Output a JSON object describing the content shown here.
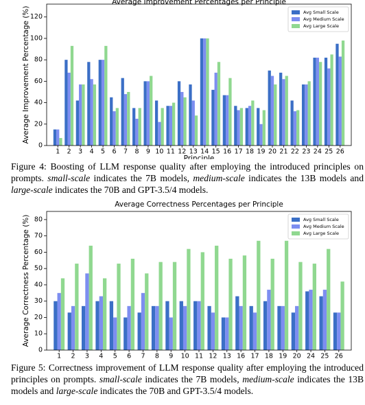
{
  "chart_data": [
    {
      "type": "bar",
      "title": "Average Improvement Percentages per Principle",
      "xlabel": "Principle",
      "ylabel": "Average Improvement Percentage (%)",
      "categories": [
        "1",
        "2",
        "3",
        "4",
        "5",
        "6",
        "7",
        "8",
        "9",
        "10",
        "11",
        "12",
        "13",
        "14",
        "15",
        "16",
        "17",
        "18",
        "19",
        "20",
        "21",
        "22",
        "23",
        "24",
        "25",
        "26"
      ],
      "series": [
        {
          "name": "Avg Small Scale",
          "color": "#3b6fc6",
          "values": [
            15,
            80,
            42,
            78,
            80,
            45,
            63,
            35,
            60,
            42,
            37,
            60,
            57,
            100,
            52,
            47,
            37,
            35,
            35,
            70,
            68,
            42,
            57,
            82,
            82,
            95
          ]
        },
        {
          "name": "Avg Medium Scale",
          "color": "#7d8ef0",
          "values": [
            15,
            68,
            57,
            62,
            80,
            32,
            48,
            25,
            60,
            22,
            37,
            50,
            42,
            100,
            68,
            47,
            33,
            37,
            20,
            65,
            62,
            32,
            57,
            82,
            72,
            83
          ]
        },
        {
          "name": "Avg Large Scale",
          "color": "#90d890",
          "values": [
            7,
            93,
            57,
            57,
            93,
            35,
            50,
            35,
            65,
            35,
            40,
            45,
            28,
            100,
            78,
            63,
            35,
            42,
            33,
            57,
            65,
            33,
            60,
            78,
            85,
            98
          ]
        }
      ],
      "ylim": [
        0,
        132
      ],
      "yticks": [
        0,
        20,
        40,
        60,
        80,
        100,
        120
      ],
      "legend": "upper right"
    },
    {
      "type": "bar",
      "title": "Average Correctness Percentages per Principle",
      "xlabel": "Principle",
      "ylabel": "Average Correctness Percentage (%)",
      "categories": [
        "1",
        "2",
        "3",
        "4",
        "5",
        "6",
        "7",
        "8",
        "9",
        "10",
        "11",
        "12",
        "13",
        "16",
        "17",
        "18",
        "19",
        "20",
        "24",
        "25",
        "26"
      ],
      "series": [
        {
          "name": "Avg Small Scale",
          "color": "#3b6fc6",
          "values": [
            30,
            23,
            27,
            30,
            30,
            20,
            23,
            27,
            30,
            30,
            30,
            27,
            20,
            33,
            27,
            30,
            27,
            23,
            36,
            33,
            23
          ]
        },
        {
          "name": "Avg Medium Scale",
          "color": "#7d8ef0",
          "values": [
            35,
            27,
            47,
            33,
            20,
            27,
            35,
            27,
            20,
            27,
            30,
            23,
            20,
            27,
            23,
            37,
            27,
            27,
            37,
            37,
            23
          ]
        },
        {
          "name": "Avg Large Scale",
          "color": "#90d890",
          "values": [
            44,
            53,
            64,
            44,
            53,
            56,
            47,
            54,
            54,
            62,
            60,
            64,
            56,
            58,
            67,
            56,
            67,
            54,
            53,
            62,
            42
          ]
        }
      ],
      "ylim": [
        0,
        85
      ],
      "yticks": [
        0,
        10,
        20,
        30,
        40,
        50,
        60,
        70,
        80
      ],
      "legend": "upper right"
    }
  ],
  "captions": [
    [
      "Figure 4: Boosting of LLM response quality after employing the introduced principles on prompts. ",
      "small-scale",
      " indicates the 7B models, ",
      "medium-scale",
      " indicates the 13B models and ",
      "large-scale",
      " indicates the 70B and GPT-3.5/4 models."
    ],
    [
      "Figure 5: Correctness improvement of LLM response quality after employing the introduced principles on prompts. ",
      "small-scale",
      " indicates the 7B models, ",
      "medium-scale",
      " indicates the 13B models and ",
      "large-scale",
      " indicates the 70B and GPT-3.5/4 models."
    ]
  ]
}
